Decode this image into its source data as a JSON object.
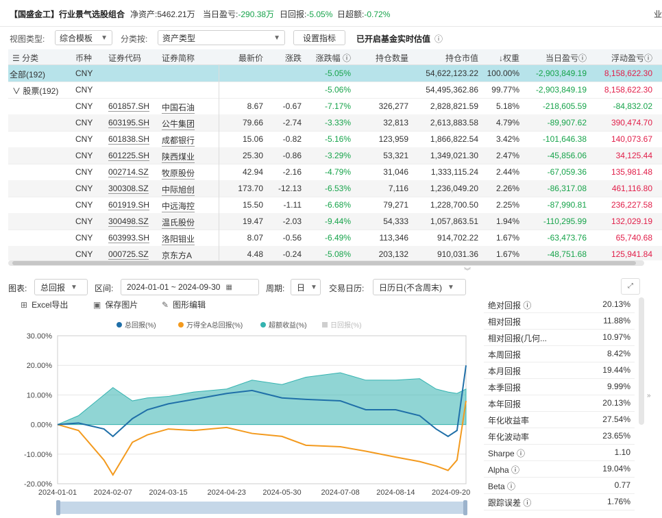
{
  "topbar": {
    "title": "【国盛金工】行业景气选股组合",
    "net_assets_label": "净资产:",
    "net_assets_value": "5462.21万",
    "day_pnl_label": "当日盈亏:",
    "day_pnl_value": "-290.38万",
    "day_return_label": "日回报:",
    "day_return_value": "-5.05%",
    "day_excess_label": "日超额:",
    "day_excess_value": "-0.72%",
    "right_text": "业"
  },
  "toolbar": {
    "view_type_label": "视图类型:",
    "view_type_value": "综合模板",
    "classify_label": "分类按:",
    "classify_value": "资产类型",
    "settings_button": "设置指标",
    "realtime_label": "已开启基金实时估值",
    "info_icon": "ⓘ"
  },
  "table": {
    "columns": [
      "分类",
      "币种",
      "证券代码",
      "证券简称",
      "最新价",
      "涨跌",
      "涨跌幅 ⓘ",
      "持仓数量",
      "持仓市值",
      "↓权重",
      "当日盈亏ⓘ",
      "浮动盈亏ⓘ"
    ],
    "summary_all": {
      "label": "全部(192)",
      "currency": "CNY",
      "chg_pct": "-5.05%",
      "mkt_value": "54,622,123.22",
      "weight": "100.00%",
      "day_pnl": "-2,903,849.19",
      "float_pnl": "8,158,622.30"
    },
    "summary_stock": {
      "label": "∨ 股票(192)",
      "currency": "CNY",
      "chg_pct": "-5.06%",
      "mkt_value": "54,495,362.86",
      "weight": "99.77%",
      "day_pnl": "-2,903,849.19",
      "float_pnl": "8,158,622.30"
    },
    "rows": [
      {
        "currency": "CNY",
        "code": "601857.SH",
        "name": "中国石油",
        "price": "8.67",
        "chg": "-0.67",
        "chg_pct": "-7.17%",
        "qty": "326,277",
        "mkt": "2,828,821.59",
        "weight": "5.18%",
        "day_pnl": "-218,605.59",
        "float_pnl": "-84,832.02"
      },
      {
        "currency": "CNY",
        "code": "603195.SH",
        "name": "公牛集团",
        "price": "79.66",
        "chg": "-2.74",
        "chg_pct": "-3.33%",
        "qty": "32,813",
        "mkt": "2,613,883.58",
        "weight": "4.79%",
        "day_pnl": "-89,907.62",
        "float_pnl": "390,474.70"
      },
      {
        "currency": "CNY",
        "code": "601838.SH",
        "name": "成都银行",
        "price": "15.06",
        "chg": "-0.82",
        "chg_pct": "-5.16%",
        "qty": "123,959",
        "mkt": "1,866,822.54",
        "weight": "3.42%",
        "day_pnl": "-101,646.38",
        "float_pnl": "140,073.67"
      },
      {
        "currency": "CNY",
        "code": "601225.SH",
        "name": "陕西煤业",
        "price": "25.30",
        "chg": "-0.86",
        "chg_pct": "-3.29%",
        "qty": "53,321",
        "mkt": "1,349,021.30",
        "weight": "2.47%",
        "day_pnl": "-45,856.06",
        "float_pnl": "34,125.44"
      },
      {
        "currency": "CNY",
        "code": "002714.SZ",
        "name": "牧原股份",
        "price": "42.94",
        "chg": "-2.16",
        "chg_pct": "-4.79%",
        "qty": "31,046",
        "mkt": "1,333,115.24",
        "weight": "2.44%",
        "day_pnl": "-67,059.36",
        "float_pnl": "135,981.48"
      },
      {
        "currency": "CNY",
        "code": "300308.SZ",
        "name": "中际旭创",
        "price": "173.70",
        "chg": "-12.13",
        "chg_pct": "-6.53%",
        "qty": "7,116",
        "mkt": "1,236,049.20",
        "weight": "2.26%",
        "day_pnl": "-86,317.08",
        "float_pnl": "461,116.80"
      },
      {
        "currency": "CNY",
        "code": "601919.SH",
        "name": "中远海控",
        "price": "15.50",
        "chg": "-1.11",
        "chg_pct": "-6.68%",
        "qty": "79,271",
        "mkt": "1,228,700.50",
        "weight": "2.25%",
        "day_pnl": "-87,990.81",
        "float_pnl": "236,227.58"
      },
      {
        "currency": "CNY",
        "code": "300498.SZ",
        "name": "温氏股份",
        "price": "19.47",
        "chg": "-2.03",
        "chg_pct": "-9.44%",
        "qty": "54,333",
        "mkt": "1,057,863.51",
        "weight": "1.94%",
        "day_pnl": "-110,295.99",
        "float_pnl": "132,029.19"
      },
      {
        "currency": "CNY",
        "code": "603993.SH",
        "name": "洛阳钼业",
        "price": "8.07",
        "chg": "-0.56",
        "chg_pct": "-6.49%",
        "qty": "113,346",
        "mkt": "914,702.22",
        "weight": "1.67%",
        "day_pnl": "-63,473.76",
        "float_pnl": "65,740.68"
      },
      {
        "currency": "CNY",
        "code": "000725.SZ",
        "name": "京东方A",
        "price": "4.48",
        "chg": "-0.24",
        "chg_pct": "-5.08%",
        "qty": "203,132",
        "mkt": "910,031.36",
        "weight": "1.67%",
        "day_pnl": "-48,751.68",
        "float_pnl": "125,941.84"
      }
    ]
  },
  "controls": {
    "chart_label": "图表:",
    "chart_value": "总回报",
    "range_label": "区间:",
    "range_value": "2024-01-01  ~  2024-09-30",
    "period_label": "周期:",
    "period_value": "日",
    "calendar_label": "交易日历:",
    "calendar_value": "日历日(不含周末)",
    "expand_icon": "⤢"
  },
  "actions": {
    "excel": "Excel导出",
    "save_image": "保存图片",
    "edit_chart": "图形编辑"
  },
  "chart_data": {
    "type": "line",
    "series": [
      {
        "name": "总回报(%)",
        "color": "#1f6fa8",
        "x": [
          "2024-01-01",
          "2024-01-15",
          "2024-02-01",
          "2024-02-07",
          "2024-02-20",
          "2024-03-01",
          "2024-03-15",
          "2024-04-01",
          "2024-04-23",
          "2024-05-10",
          "2024-05-30",
          "2024-06-15",
          "2024-07-08",
          "2024-07-25",
          "2024-08-14",
          "2024-08-30",
          "2024-09-10",
          "2024-09-18",
          "2024-09-24",
          "2024-09-30"
        ],
        "values": [
          0.0,
          0.5,
          -1.5,
          -4.0,
          2.0,
          5.0,
          7.0,
          8.5,
          10.5,
          11.5,
          9.0,
          8.5,
          8.0,
          5.0,
          5.0,
          3.0,
          -1.5,
          -4.0,
          -2.0,
          20.0
        ]
      },
      {
        "name": "万得全A总回报(%)",
        "color": "#f39a1e",
        "x": [
          "2024-01-01",
          "2024-01-15",
          "2024-02-01",
          "2024-02-07",
          "2024-02-20",
          "2024-03-01",
          "2024-03-15",
          "2024-04-01",
          "2024-04-23",
          "2024-05-10",
          "2024-05-30",
          "2024-06-15",
          "2024-07-08",
          "2024-07-25",
          "2024-08-14",
          "2024-08-30",
          "2024-09-10",
          "2024-09-18",
          "2024-09-24",
          "2024-09-30"
        ],
        "values": [
          0.0,
          -2.0,
          -12.0,
          -17.0,
          -6.0,
          -3.5,
          -1.5,
          -2.0,
          -1.0,
          -3.0,
          -4.0,
          -7.0,
          -7.5,
          -9.0,
          -11.0,
          -12.5,
          -14.0,
          -15.5,
          -12.0,
          8.0
        ]
      },
      {
        "name": "超额收益(%)",
        "color": "#34b3b0",
        "x": [
          "2024-01-01",
          "2024-01-15",
          "2024-02-01",
          "2024-02-07",
          "2024-02-20",
          "2024-03-01",
          "2024-03-15",
          "2024-04-01",
          "2024-04-23",
          "2024-05-10",
          "2024-05-30",
          "2024-06-15",
          "2024-07-08",
          "2024-07-25",
          "2024-08-14",
          "2024-08-30",
          "2024-09-10",
          "2024-09-18",
          "2024-09-24",
          "2024-09-30"
        ],
        "values": [
          0.0,
          3.0,
          10.0,
          12.5,
          8.0,
          9.0,
          9.5,
          11.0,
          12.0,
          15.0,
          13.5,
          16.0,
          17.5,
          15.0,
          15.0,
          15.5,
          12.0,
          11.0,
          10.5,
          12.0
        ]
      },
      {
        "name": "日回报(%)",
        "color": "#cfcfcf",
        "x": [],
        "values": []
      }
    ],
    "x_ticks": [
      "2024-01-01",
      "2024-02-07",
      "2024-03-15",
      "2024-04-23",
      "2024-05-30",
      "2024-07-08",
      "2024-08-14",
      "2024-09-20"
    ],
    "y_ticks": [
      "30.00%",
      "20.00%",
      "10.00%",
      "0.00%",
      "-10.00%",
      "-20.00%"
    ],
    "ylim": [
      -20,
      30
    ],
    "legend_position": "top",
    "grid": true
  },
  "metrics": [
    {
      "k": "绝对回报 ⓘ",
      "v": "20.13%"
    },
    {
      "k": "相对回报",
      "v": "11.88%"
    },
    {
      "k": "相对回报(几何...",
      "v": "10.97%"
    },
    {
      "k": "本周回报",
      "v": "8.42%"
    },
    {
      "k": "本月回报",
      "v": "19.44%"
    },
    {
      "k": "本季回报",
      "v": "9.99%"
    },
    {
      "k": "本年回报",
      "v": "20.13%"
    },
    {
      "k": "年化收益率",
      "v": "27.54%"
    },
    {
      "k": "年化波动率",
      "v": "23.65%"
    },
    {
      "k": "Sharpe ⓘ",
      "v": "1.10"
    },
    {
      "k": "Alpha ⓘ",
      "v": "19.04%"
    },
    {
      "k": "Beta ⓘ",
      "v": "0.77"
    },
    {
      "k": "跟踪误差 ⓘ",
      "v": "1.76%"
    }
  ]
}
